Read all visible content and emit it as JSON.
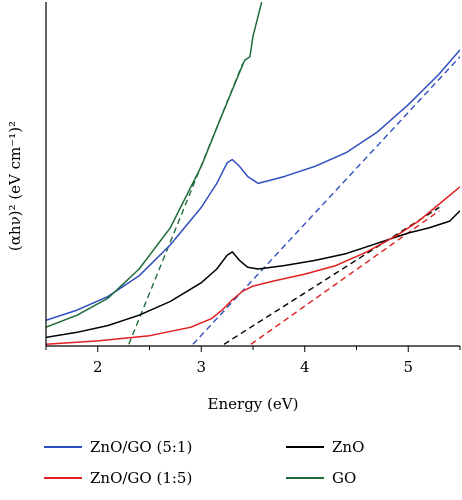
{
  "chart_data": {
    "type": "line",
    "xlabel": "Energy (eV)",
    "ylabel": "(αhν)² (eV cm⁻¹)²",
    "xlim": [
      1.5,
      5.5
    ],
    "x_ticks": [
      2,
      3,
      4,
      5
    ],
    "y_ticks": [],
    "grid": false,
    "legend_position": "bottom",
    "series": [
      {
        "name": "ZnO/GO (5:1)",
        "color": "#2e4fbf",
        "x": [
          1.5,
          1.8,
          2.1,
          2.4,
          2.7,
          3.0,
          3.15,
          3.25,
          3.3,
          3.37,
          3.45,
          3.55,
          3.8,
          4.1,
          4.4,
          4.7,
          5.0,
          5.3,
          5.5
        ],
        "y": [
          0.07,
          0.1,
          0.14,
          0.2,
          0.29,
          0.4,
          0.47,
          0.53,
          0.54,
          0.52,
          0.49,
          0.47,
          0.49,
          0.52,
          0.56,
          0.62,
          0.7,
          0.79,
          0.86
        ]
      },
      {
        "name": "ZnO",
        "color": "#000000",
        "x": [
          1.5,
          1.8,
          2.1,
          2.4,
          2.7,
          3.0,
          3.15,
          3.25,
          3.3,
          3.37,
          3.45,
          3.55,
          3.8,
          4.1,
          4.4,
          4.7,
          5.0,
          5.2,
          5.4,
          5.5
        ],
        "y": [
          0.02,
          0.035,
          0.055,
          0.085,
          0.125,
          0.18,
          0.22,
          0.26,
          0.27,
          0.245,
          0.225,
          0.22,
          0.23,
          0.245,
          0.265,
          0.295,
          0.325,
          0.34,
          0.36,
          0.39
        ]
      },
      {
        "name": "ZnO/GO (1:5)",
        "color": "#e02020",
        "x": [
          1.5,
          2.0,
          2.5,
          2.9,
          3.1,
          3.2,
          3.3,
          3.4,
          3.5,
          3.7,
          4.0,
          4.3,
          4.6,
          4.9,
          5.1,
          5.3,
          5.5
        ],
        "y": [
          0.0,
          0.01,
          0.025,
          0.05,
          0.075,
          0.1,
          0.13,
          0.155,
          0.17,
          0.185,
          0.205,
          0.23,
          0.27,
          0.32,
          0.36,
          0.41,
          0.46
        ]
      },
      {
        "name": "GO",
        "color": "#1f6b3a",
        "x": [
          1.5,
          1.8,
          2.1,
          2.4,
          2.7,
          3.0,
          3.2,
          3.35,
          3.42,
          3.47,
          3.5,
          3.55,
          3.6,
          3.66
        ],
        "y": [
          0.05,
          0.085,
          0.135,
          0.22,
          0.34,
          0.52,
          0.67,
          0.78,
          0.83,
          0.84,
          0.9,
          0.96,
          1.02,
          1.1
        ]
      }
    ],
    "tangent_lines": [
      {
        "series": "ZnO/GO (5:1)",
        "color": "#2e4fbf",
        "x": [
          2.92,
          5.5
        ],
        "y": [
          0.0,
          0.84
        ]
      },
      {
        "series": "ZnO",
        "color": "#000000",
        "x": [
          3.22,
          5.3
        ],
        "y": [
          0.0,
          0.4
        ]
      },
      {
        "series": "ZnO/GO (1:5)",
        "color": "#e02020",
        "x": [
          3.48,
          5.3
        ],
        "y": [
          0.0,
          0.39
        ]
      },
      {
        "series": "GO",
        "color": "#1f6b3a",
        "x": [
          2.3,
          3.4
        ],
        "y": [
          0.0,
          0.82
        ]
      }
    ],
    "legend": [
      {
        "label": "ZnO/GO (5:1)",
        "color": "#2e4fbf"
      },
      {
        "label": "ZnO",
        "color": "#000000"
      },
      {
        "label": "ZnO/GO (1:5)",
        "color": "#e02020"
      },
      {
        "label": "GO",
        "color": "#1f6b3a"
      }
    ]
  }
}
